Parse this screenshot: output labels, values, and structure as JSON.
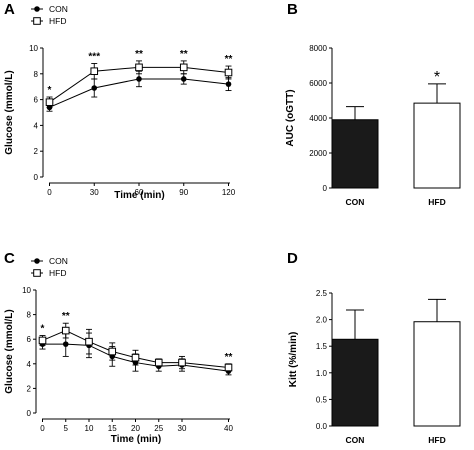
{
  "chart_data": [
    {
      "panel": "A",
      "type": "line",
      "xlabel": "Time (min)",
      "ylabel": "Glucose (mmol/L)",
      "x": [
        0,
        30,
        60,
        90,
        120
      ],
      "xticks": [
        "0",
        "30",
        "60",
        "90",
        "120"
      ],
      "yticks": [
        "0",
        "2",
        "4",
        "6",
        "8",
        "10"
      ],
      "xlim": [
        0,
        120
      ],
      "ylim": [
        0,
        10
      ],
      "legend": "top-left",
      "series": [
        {
          "name": "CON",
          "marker": "filled-circle",
          "values": [
            5.4,
            6.9,
            7.6,
            7.6,
            7.2
          ],
          "errors": [
            0.3,
            0.7,
            0.6,
            0.4,
            0.5
          ]
        },
        {
          "name": "HFD",
          "marker": "open-square",
          "values": [
            5.8,
            8.2,
            8.5,
            8.5,
            8.1
          ],
          "errors": [
            0.4,
            0.6,
            0.5,
            0.5,
            0.5
          ]
        }
      ],
      "annotations": [
        "*",
        "***",
        "**",
        "**",
        "**"
      ]
    },
    {
      "panel": "B",
      "type": "bar",
      "ylabel": "AUC (oGTT)",
      "categories": [
        "CON",
        "HFD"
      ],
      "values": [
        3900,
        4850
      ],
      "errors": [
        750,
        1100
      ],
      "fills": [
        "#1a1a1a",
        "#ffffff"
      ],
      "yticks": [
        "0",
        "2000",
        "4000",
        "6000",
        "8000"
      ],
      "ylim": [
        0,
        8000
      ],
      "annotations": [
        "",
        "*"
      ]
    },
    {
      "panel": "C",
      "type": "line",
      "xlabel": "Time (min)",
      "ylabel": "Glucose (mmol/L)",
      "x": [
        0,
        5,
        10,
        15,
        20,
        25,
        30,
        40
      ],
      "xticks": [
        "0",
        "5",
        "10",
        "15",
        "20",
        "25",
        "30",
        "40"
      ],
      "yticks": [
        "0",
        "2",
        "4",
        "6",
        "8",
        "10"
      ],
      "xlim": [
        0,
        40
      ],
      "ylim": [
        0,
        10
      ],
      "legend": "top-left",
      "series": [
        {
          "name": "CON",
          "marker": "filled-circle",
          "values": [
            5.6,
            5.6,
            5.5,
            4.6,
            4.1,
            3.8,
            3.9,
            3.4
          ],
          "errors": [
            0.4,
            1.0,
            1.0,
            0.8,
            0.7,
            0.4,
            0.5,
            0.3
          ]
        },
        {
          "name": "HFD",
          "marker": "open-square",
          "values": [
            5.9,
            6.7,
            5.8,
            5.0,
            4.5,
            4.1,
            4.1,
            3.7
          ],
          "errors": [
            0.4,
            0.6,
            1.0,
            0.7,
            0.6,
            0.3,
            0.5,
            0.3
          ]
        }
      ],
      "annotations": [
        "*",
        "**",
        "",
        "",
        "",
        "",
        "",
        "**"
      ]
    },
    {
      "panel": "D",
      "type": "bar",
      "ylabel": "Kitt (%/min)",
      "categories": [
        "CON",
        "HFD"
      ],
      "values": [
        1.63,
        1.96
      ],
      "errors": [
        0.55,
        0.42
      ],
      "fills": [
        "#1a1a1a",
        "#ffffff"
      ],
      "yticks": [
        "0.0",
        "0.5",
        "1.0",
        "1.5",
        "2.0",
        "2.5"
      ],
      "ylim": [
        0,
        2.5
      ],
      "annotations": [
        "",
        ""
      ]
    }
  ]
}
